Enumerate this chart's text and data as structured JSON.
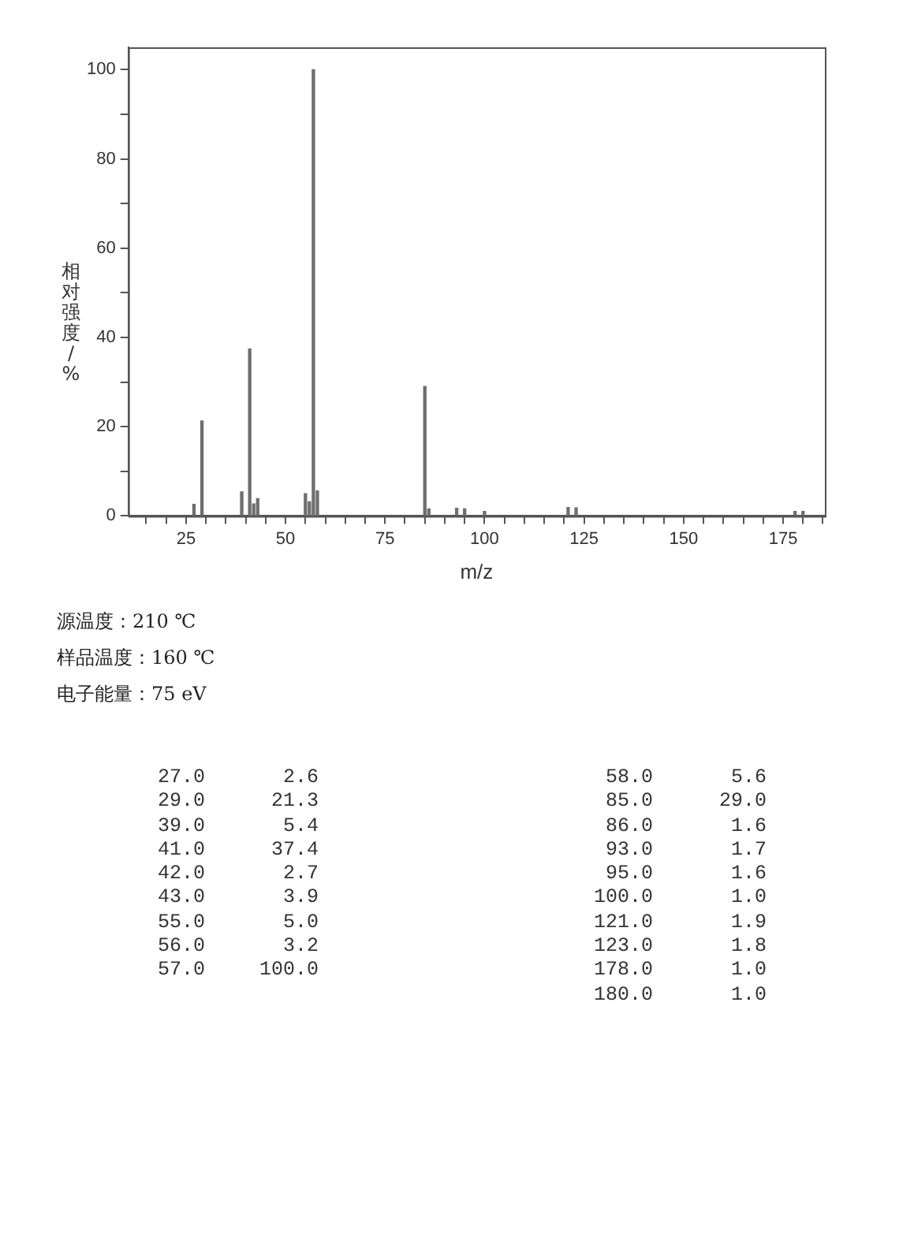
{
  "chart_data": [
    {
      "type": "bar",
      "xlabel": "m/z",
      "ylabel": "相对强度/%",
      "x": [
        27,
        29,
        39,
        41,
        42,
        43,
        55,
        56,
        57,
        58,
        85,
        86,
        93,
        95,
        100,
        121,
        123,
        178,
        180
      ],
      "values": [
        2.6,
        21.3,
        5.4,
        37.4,
        2.7,
        3.9,
        5.0,
        3.2,
        100.0,
        5.6,
        29.0,
        1.6,
        1.7,
        1.6,
        1.0,
        1.9,
        1.8,
        1.0,
        1.0
      ],
      "color": "#6e6e6e",
      "xlim": [
        10.5,
        185.5
      ],
      "xticks": [
        {
          "value": 15,
          "label": null
        },
        {
          "value": 20,
          "label": null
        },
        25,
        {
          "value": 30,
          "label": null
        },
        {
          "value": 35,
          "label": null
        },
        {
          "value": 40,
          "label": null
        },
        {
          "value": 45,
          "label": null
        },
        50,
        {
          "value": 55,
          "label": null
        },
        {
          "value": 60,
          "label": null
        },
        {
          "value": 65,
          "label": null
        },
        {
          "value": 70,
          "label": null
        },
        75,
        {
          "value": 80,
          "label": null
        },
        {
          "value": 85,
          "label": null
        },
        {
          "value": 90,
          "label": null
        },
        {
          "value": 95,
          "label": null
        },
        100,
        {
          "value": 105,
          "label": null
        },
        {
          "value": 110,
          "label": null
        },
        {
          "value": 115,
          "label": null
        },
        {
          "value": 120,
          "label": null
        },
        125,
        {
          "value": 130,
          "label": null
        },
        {
          "value": 135,
          "label": null
        },
        {
          "value": 140,
          "label": null
        },
        {
          "value": 145,
          "label": null
        },
        150,
        {
          "value": 155,
          "label": null
        },
        {
          "value": 160,
          "label": null
        },
        {
          "value": 165,
          "label": null
        },
        {
          "value": 170,
          "label": null
        },
        175,
        {
          "value": 180,
          "label": null
        },
        {
          "value": 185,
          "label": null
        }
      ],
      "ylim": [
        0,
        105
      ],
      "yticks": [
        0,
        {
          "value": 10,
          "label": null
        },
        20,
        {
          "value": 30,
          "label": null
        },
        40,
        {
          "value": 50,
          "label": null
        },
        60,
        {
          "value": 70,
          "label": null
        },
        80,
        {
          "value": 90,
          "label": null
        },
        100
      ],
      "grid": false,
      "legend": false,
      "annotations": [
        "源温度：210 ℃",
        "样品温度：160 ℃",
        "电子能量：75 eV"
      ]
    },
    {
      "type": "other",
      "annotations": [
        "27.0",
        "2.6",
        "29.0",
        "21.3",
        "39.0",
        "5.4",
        "41.0",
        "37.4",
        "42.0",
        "2.7",
        "43.0",
        "3.9",
        "55.0",
        "5.0",
        "56.0",
        "3.2",
        "57.0",
        "100.0",
        "58.0",
        "5.6",
        "85.0",
        "29.0",
        "86.0",
        "1.6",
        "93.0",
        "1.7",
        "95.0",
        "1.6",
        "100.0",
        "1.0",
        "121.0",
        "1.9",
        "123.0",
        "1.8",
        "178.0",
        "1.0",
        "180.0",
        "1.0"
      ]
    }
  ]
}
